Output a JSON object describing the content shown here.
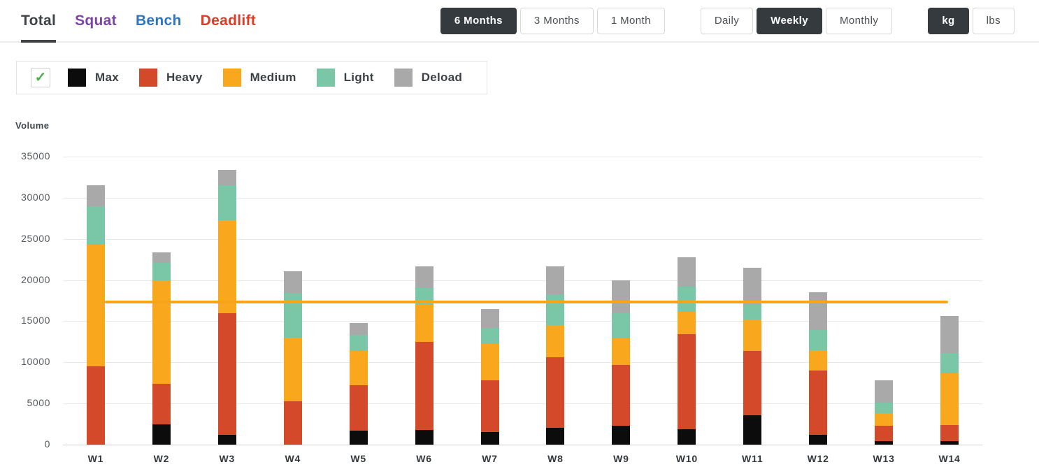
{
  "header": {
    "tabs": [
      {
        "label": "Total",
        "color": "#3e4347",
        "active": true
      },
      {
        "label": "Squat",
        "color": "#7d44a5",
        "active": false
      },
      {
        "label": "Bench",
        "color": "#2e76bf",
        "active": false
      },
      {
        "label": "Deadlift",
        "color": "#df3b26",
        "active": false
      }
    ],
    "range_group": {
      "buttons": [
        "6 Months",
        "3 Months",
        "1 Month"
      ],
      "active": "6 Months"
    },
    "granularity_group": {
      "buttons": [
        "Daily",
        "Weekly",
        "Monthly"
      ],
      "active": "Weekly"
    },
    "unit_group": {
      "buttons": [
        "kg",
        "lbs"
      ],
      "active": "kg"
    }
  },
  "legend": {
    "checkbox_checked": true,
    "check_glyph": "✓",
    "check_color": "#4db04f",
    "items": [
      {
        "label": "Max",
        "color": "#0c0c0c"
      },
      {
        "label": "Heavy",
        "color": "#d3492a"
      },
      {
        "label": "Medium",
        "color": "#f9a81d"
      },
      {
        "label": "Light",
        "color": "#79c7a6"
      },
      {
        "label": "Deload",
        "color": "#a9a9aa"
      }
    ]
  },
  "chart_data": {
    "type": "bar",
    "stacked": true,
    "title": "",
    "ylabel": "Volume",
    "xlabel": "",
    "categories": [
      "W1",
      "W2",
      "W3",
      "W4",
      "W5",
      "W6",
      "W7",
      "W8",
      "W9",
      "W10",
      "W11",
      "W12",
      "W13",
      "W14"
    ],
    "series": [
      {
        "name": "Max",
        "color": "#0c0c0c",
        "values": [
          0,
          2500,
          1200,
          0,
          1700,
          1800,
          1500,
          2000,
          2300,
          1900,
          3600,
          1200,
          400,
          400
        ]
      },
      {
        "name": "Heavy",
        "color": "#d3492a",
        "values": [
          9500,
          4900,
          14800,
          5300,
          5500,
          10700,
          6300,
          8600,
          7400,
          11500,
          7800,
          7800,
          1900,
          2000
        ]
      },
      {
        "name": "Medium",
        "color": "#f9a81d",
        "values": [
          14800,
          12600,
          11300,
          7700,
          4200,
          4500,
          4400,
          3900,
          3200,
          2700,
          3700,
          2500,
          1500,
          6300
        ]
      },
      {
        "name": "Light",
        "color": "#79c7a6",
        "values": [
          4700,
          2100,
          4200,
          5400,
          1900,
          2000,
          2000,
          3800,
          3100,
          3100,
          2000,
          2400,
          1300,
          2400
        ]
      },
      {
        "name": "Deload",
        "color": "#a9a9aa",
        "values": [
          2500,
          1300,
          1900,
          2700,
          1500,
          2700,
          2300,
          3400,
          4000,
          3600,
          4400,
          4600,
          2700,
          4500
        ]
      }
    ],
    "totals": [
      31500,
      23400,
      33400,
      21100,
      14800,
      21700,
      16500,
      21700,
      20000,
      22800,
      21500,
      18500,
      7800,
      15600
    ],
    "target_line": {
      "value": 17300,
      "color": "#f7a516"
    },
    "ylim": [
      0,
      35000
    ],
    "ytick_step": 5000,
    "grid": true,
    "legend_position": "top-left"
  }
}
